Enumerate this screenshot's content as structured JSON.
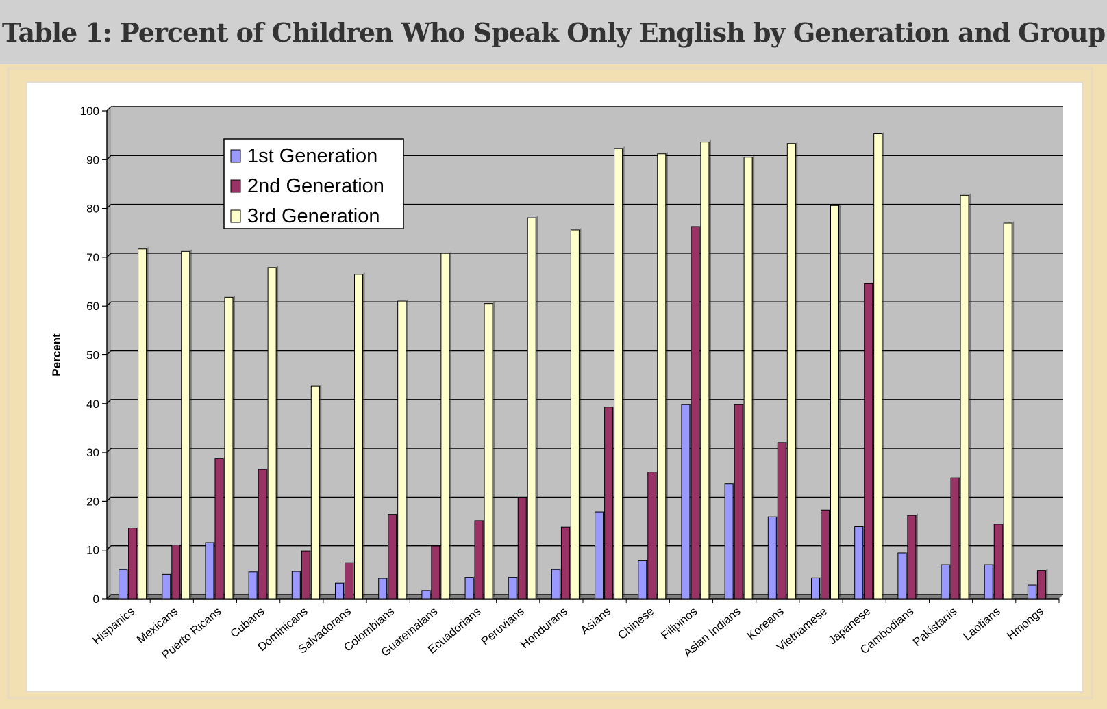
{
  "title": "Table 1: Percent of Children Who Speak Only English by Generation and Group",
  "colors": {
    "gen1": "#9999ff",
    "gen2": "#993366",
    "gen3": "#ffffcc",
    "plot_bg": "#c0c0c0",
    "header_bg": "#d0d0d0",
    "frame_bg": "#f2dfb2"
  },
  "chart_data": {
    "type": "bar",
    "title": "",
    "xlabel": "",
    "ylabel": "Percent",
    "ylim": [
      0,
      100
    ],
    "yticks": [
      0,
      10,
      20,
      30,
      40,
      50,
      60,
      70,
      80,
      90,
      100
    ],
    "grid": true,
    "legend_position": "top-left",
    "categories": [
      "Hispanics",
      "Mexicans",
      "Puerto Ricans",
      "Cubans",
      "Dominicans",
      "Salvadorans",
      "Colombians",
      "Guatemalans",
      "Ecuadorians",
      "Peruvians",
      "Hondurans",
      "Asians",
      "Chinese",
      "Filipinos",
      "Asian Indians",
      "Koreans",
      "Vietnamese",
      "Japanese",
      "Cambodians",
      "Pakistanis",
      "Laotians",
      "Hmongs"
    ],
    "series": [
      {
        "name": "1st Generation",
        "color": "#9999ff",
        "values": [
          6,
          5,
          11.5,
          5.5,
          5.6,
          3.2,
          4.2,
          1.7,
          4.4,
          4.4,
          6,
          17.8,
          7.8,
          39.8,
          23.6,
          16.8,
          4.3,
          14.8,
          9.4,
          7,
          7,
          2.8
        ]
      },
      {
        "name": "2nd Generation",
        "color": "#993366",
        "values": [
          14.5,
          11,
          28.8,
          26.5,
          9.8,
          7.4,
          17.3,
          10.8,
          16,
          20.8,
          14.7,
          39.3,
          26,
          76.3,
          39.8,
          32,
          18.2,
          64.6,
          17.1,
          24.8,
          15.3,
          5.8
        ]
      },
      {
        "name": "3rd Generation",
        "color": "#ffffcc",
        "values": [
          71.7,
          71.2,
          61.8,
          67.9,
          43.6,
          66.5,
          61,
          70.8,
          60.5,
          78.1,
          75.6,
          92.3,
          91.2,
          93.6,
          90.5,
          93.3,
          80.6,
          95.3,
          null,
          82.7,
          77,
          null
        ]
      }
    ]
  }
}
